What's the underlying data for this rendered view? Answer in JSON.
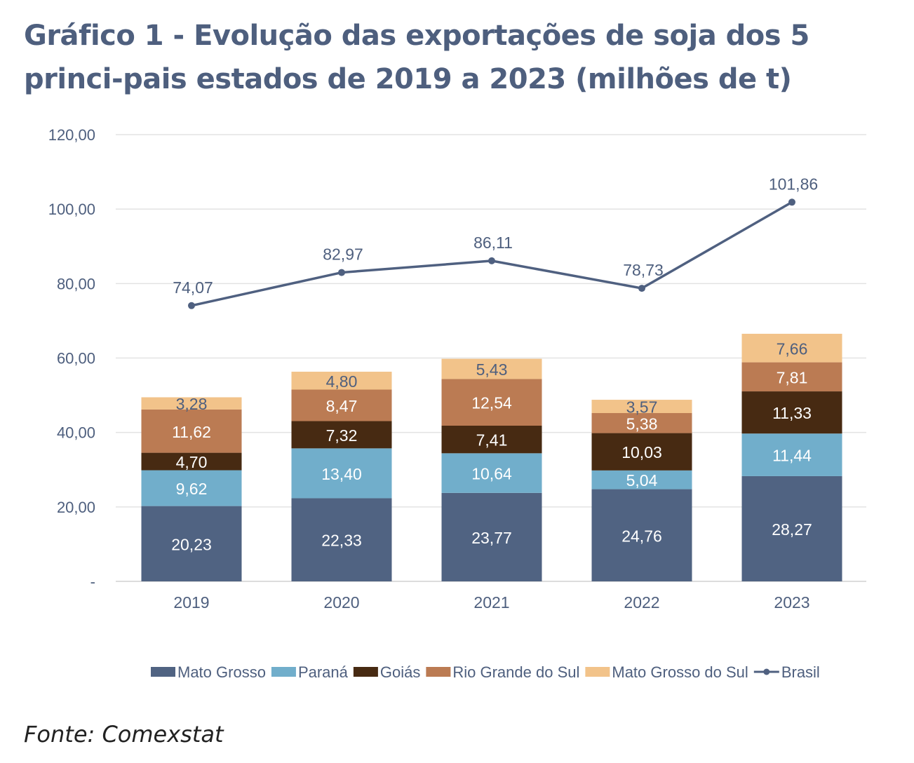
{
  "chart_data": {
    "type": "bar",
    "stacked": true,
    "title": "Gráfico 1 - Evolução das exportações de soja dos 5 principais estados de 2019 a 2023 (milhões de t)",
    "categories": [
      "2019",
      "2020",
      "2021",
      "2022",
      "2023"
    ],
    "ylim": [
      0,
      120
    ],
    "yticks": [
      0,
      20,
      40,
      60,
      80,
      100,
      120
    ],
    "ytick_labels": [
      "-",
      "20,00",
      "40,00",
      "60,00",
      "80,00",
      "100,00",
      "120,00"
    ],
    "grid": true,
    "legend_position": "bottom-right",
    "series": [
      {
        "name": "Mato Grosso",
        "type": "bar",
        "color": "#506382",
        "label_color": "#ffffff",
        "values": [
          20.23,
          22.33,
          23.77,
          24.76,
          28.27
        ],
        "labels": [
          "20,23",
          "22,33",
          "23,77",
          "24,76",
          "28,27"
        ]
      },
      {
        "name": "Paraná",
        "type": "bar",
        "color": "#71aecb",
        "label_color": "#ffffff",
        "values": [
          9.62,
          13.4,
          10.64,
          5.04,
          11.44
        ],
        "labels": [
          "9,62",
          "13,40",
          "10,64",
          "5,04",
          "11,44"
        ]
      },
      {
        "name": "Goiás",
        "type": "bar",
        "color": "#472a12",
        "label_color": "#ffffff",
        "values": [
          4.7,
          7.32,
          7.41,
          10.03,
          11.33
        ],
        "labels": [
          "4,70",
          "7,32",
          "7,41",
          "10,03",
          "11,33"
        ]
      },
      {
        "name": "Rio Grande do Sul",
        "type": "bar",
        "color": "#bb7b53",
        "label_color": "#ffffff",
        "values": [
          11.62,
          8.47,
          12.54,
          5.38,
          7.81
        ],
        "labels": [
          "11,62",
          "8,47",
          "12,54",
          "5,38",
          "7,81"
        ]
      },
      {
        "name": "Mato Grosso do Sul",
        "type": "bar",
        "color": "#f2c38a",
        "label_color": "#4e5f7e",
        "values": [
          3.28,
          4.8,
          5.43,
          3.57,
          7.66
        ],
        "labels": [
          "3,28",
          "4,80",
          "5,43",
          "3,57",
          "7,66"
        ]
      },
      {
        "name": "Brasil",
        "type": "line",
        "color": "#4f6080",
        "label_color": "#4e5f7e",
        "values": [
          74.07,
          82.97,
          86.11,
          78.73,
          101.86
        ],
        "labels": [
          "74,07",
          "82,97",
          "86,11",
          "78,73",
          "101,86"
        ]
      }
    ]
  },
  "header": {
    "title": "Gráfico 1 - Evolução das exportações de soja dos 5 princi-pais estados de 2019 a 2023 (milhões de t)"
  },
  "footer": {
    "source": "Fonte: Comexstat"
  }
}
